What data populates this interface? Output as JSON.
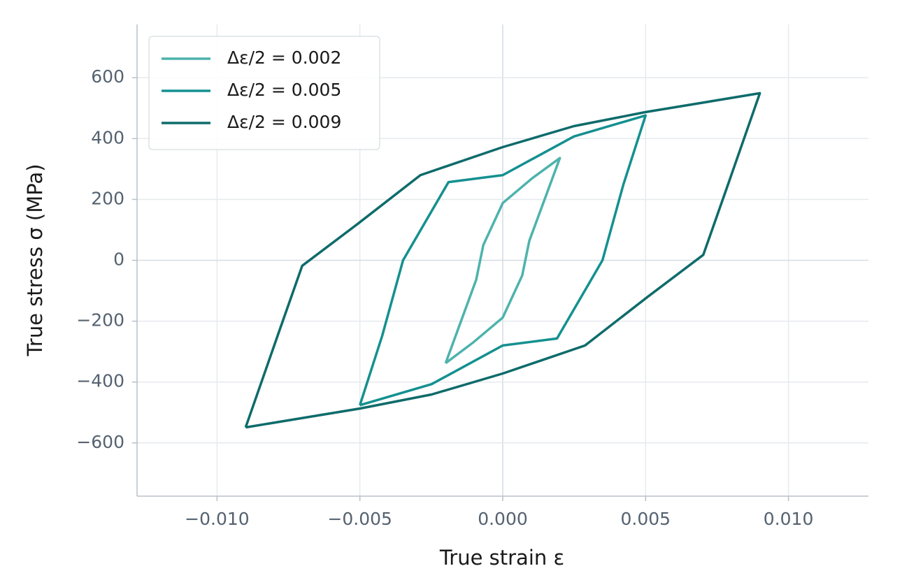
{
  "chart_data": {
    "type": "line",
    "xlabel": "True strain  ε",
    "ylabel": "True stress  σ  (MPa)",
    "xlim": [
      -0.0128,
      0.0128
    ],
    "ylim": [
      -775,
      775
    ],
    "xticks": [
      {
        "value": -0.01,
        "label": "−0.010"
      },
      {
        "value": -0.005,
        "label": "−0.005"
      },
      {
        "value": 0,
        "label": "0.000"
      },
      {
        "value": 0.005,
        "label": "0.005"
      },
      {
        "value": 0.01,
        "label": "0.010"
      }
    ],
    "yticks": [
      {
        "value": -600,
        "label": "−600"
      },
      {
        "value": -400,
        "label": "−400"
      },
      {
        "value": -200,
        "label": "−200"
      },
      0,
      200,
      400,
      600
    ],
    "grid": true,
    "legend": "upper left",
    "series": [
      {
        "name": "Δε/2 = 0.002",
        "color": "#4db3ac",
        "x": [
          -0.002,
          -0.00093,
          -0.00068,
          0,
          0.00102,
          0.002,
          0.00093,
          0.00068,
          0,
          -0.00102,
          -0.002
        ],
        "values": [
          -338,
          -64,
          50,
          188,
          269,
          336,
          64,
          -50,
          -188,
          -269,
          -338
        ]
      },
      {
        "name": "Δε/2 = 0.005",
        "color": "#159090",
        "x": [
          -0.005,
          -0.00422,
          -0.00349,
          -0.0019,
          0,
          0.00249,
          0.005,
          0.00422,
          0.00349,
          0.0019,
          0,
          -0.00249,
          -0.005
        ],
        "values": [
          -476,
          -248,
          0,
          257,
          280,
          407,
          476,
          248,
          0,
          -257,
          -280,
          -407,
          -476
        ]
      },
      {
        "name": "Δε/2 = 0.009",
        "color": "#0f6b6b",
        "x": [
          -0.009,
          -0.00788,
          -0.00702,
          -0.00507,
          -0.00288,
          0,
          0.00249,
          0.005,
          0.009,
          0.00788,
          0.00702,
          0.00507,
          0.00288,
          0,
          -0.00249,
          -0.005,
          -0.009
        ],
        "values": [
          -549,
          -248,
          -18,
          120,
          280,
          372,
          441,
          487,
          549,
          248,
          18,
          -120,
          -280,
          -372,
          -441,
          -487,
          -549
        ]
      }
    ]
  }
}
